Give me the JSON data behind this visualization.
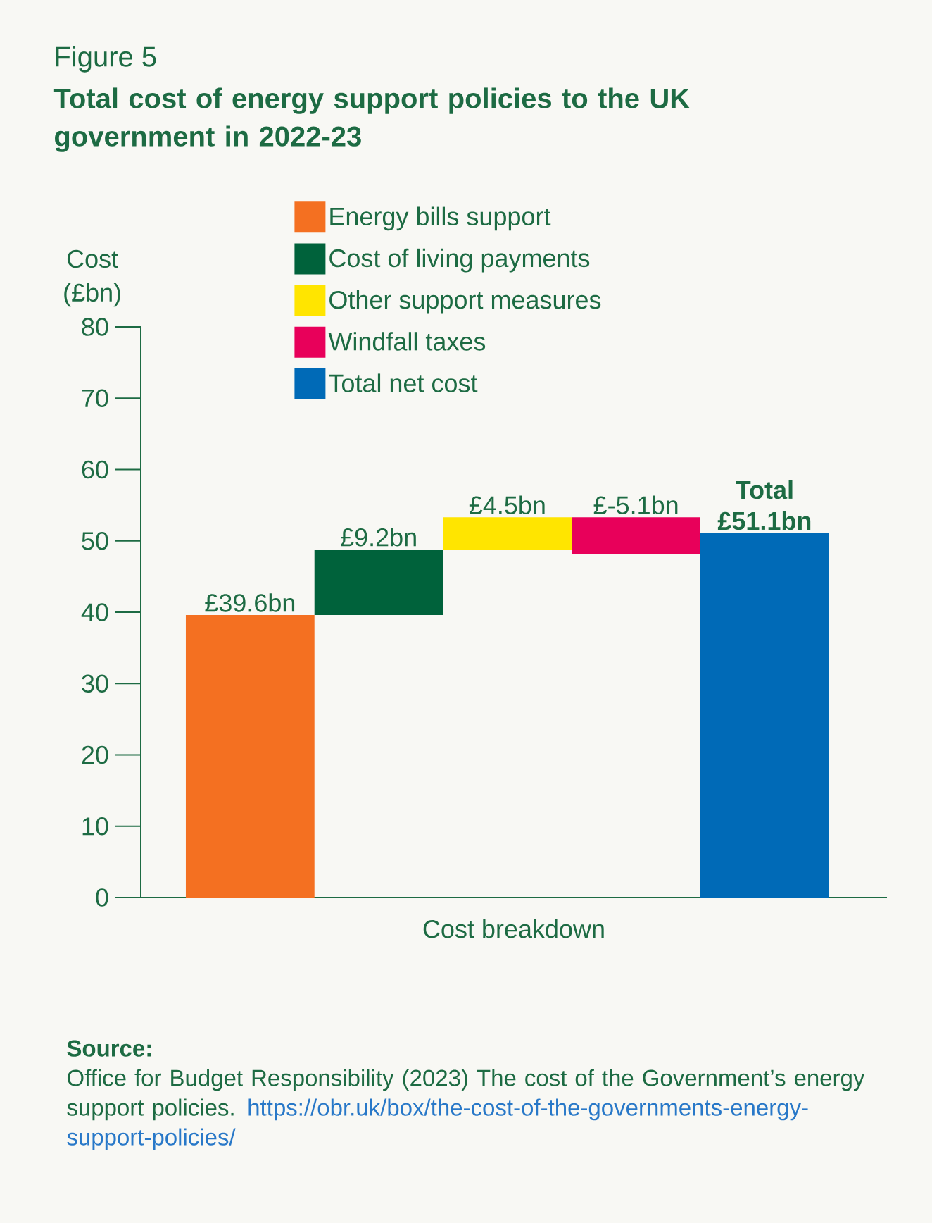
{
  "chart_data": {
    "type": "bar",
    "title": "Figure 5",
    "subtitle": "Total cost of energy support policies to the UK government in 2022-23",
    "xlabel": "Cost breakdown",
    "ylabel": "Cost (£bn)",
    "categories": [
      null,
      null,
      null,
      null,
      null
    ],
    "series": [
      {
        "name": "Energy bills support",
        "color": "#f47021",
        "values": [
          39.6,
          null,
          null,
          null,
          null
        ],
        "base": [
          0,
          null,
          null,
          null,
          null
        ],
        "value_labels": [
          "£39.6bn",
          null,
          null,
          null,
          null
        ]
      },
      {
        "name": "Cost of living payments",
        "color": "#00623b",
        "values": [
          null,
          9.2,
          null,
          null,
          null
        ],
        "base": [
          null,
          39.6,
          null,
          null,
          null
        ],
        "value_labels": [
          null,
          "£9.2bn",
          null,
          null,
          null
        ]
      },
      {
        "name": "Other support measures",
        "color": "#ffe500",
        "values": [
          null,
          null,
          4.5,
          null,
          null
        ],
        "base": [
          null,
          null,
          48.8,
          null,
          null
        ],
        "value_labels": [
          null,
          null,
          "£4.5bn",
          null,
          null
        ]
      },
      {
        "name": "Windfall taxes",
        "color": "#e8005a",
        "values": [
          null,
          null,
          null,
          -5.1,
          null
        ],
        "base": [
          null,
          null,
          null,
          53.3,
          null
        ],
        "value_labels": [
          null,
          null,
          null,
          "£-5.1bn",
          null
        ]
      },
      {
        "name": "Total net cost",
        "color": "#006ab7",
        "values": [
          null,
          null,
          null,
          null,
          51.1
        ],
        "base": [
          null,
          null,
          null,
          null,
          0
        ],
        "value_labels": [
          null,
          null,
          null,
          null,
          "**Total £51.1bn**"
        ]
      }
    ],
    "ylim": [
      0,
      80
    ],
    "yticks": [
      0,
      10,
      20,
      30,
      40,
      50,
      60,
      70,
      80
    ],
    "grid": false,
    "legend": "top",
    "annotations": [
      "**Source:**",
      "Office for Budget Responsibility (2023) The cost of the Government’s energy support policies.",
      "https://obr.uk/box/the-cost-of-the-governments-energy-support-policies/"
    ]
  }
}
